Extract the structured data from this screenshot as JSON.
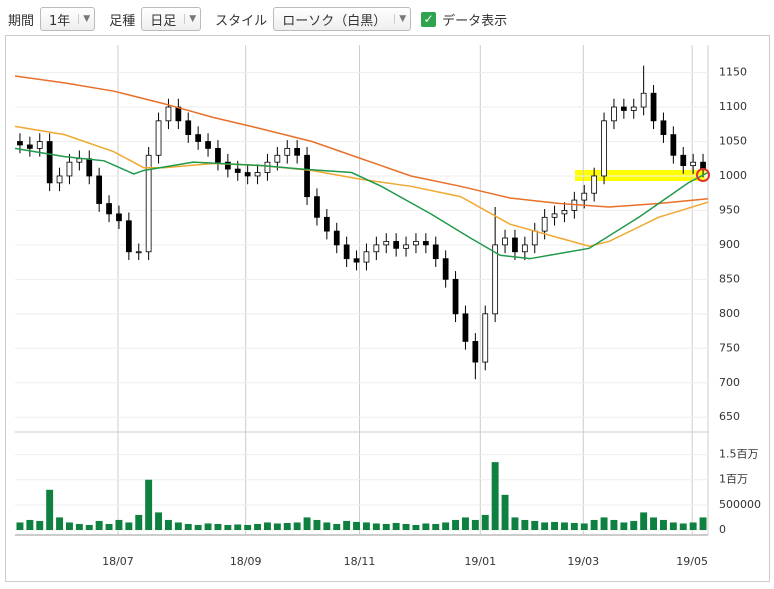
{
  "toolbar": {
    "period_label": "期間",
    "period_value": "1年",
    "bar_label": "足種",
    "bar_value": "日足",
    "style_label": "スタイル",
    "style_value": "ローソク（白黒）",
    "checkbox_label": "データ表示",
    "checkbox_checked": true
  },
  "chart_data": {
    "type": "candlestick",
    "up_color": "#ffffff",
    "down_color": "#000000",
    "xlim": [
      0,
      70
    ],
    "xticks": [
      {
        "value": 10.4,
        "label": "18/07"
      },
      {
        "value": 23.3,
        "label": "18/09"
      },
      {
        "value": 34.8,
        "label": "18/11"
      },
      {
        "value": 47,
        "label": "19/01"
      },
      {
        "value": 57.4,
        "label": "19/03"
      },
      {
        "value": 68.4,
        "label": "19/05"
      }
    ],
    "ylim": [
      630,
      1190
    ],
    "yticks": [
      650,
      700,
      750,
      800,
      850,
      900,
      950,
      1000,
      1050,
      1100,
      1150
    ],
    "grid": true,
    "open": [
      1050,
      1045,
      1040,
      1050,
      990,
      1000,
      1020,
      1025,
      1000,
      960,
      945,
      935,
      890,
      890,
      1030,
      1080,
      1100,
      1080,
      1060,
      1050,
      1040,
      1020,
      1010,
      1005,
      1000,
      1005,
      1020,
      1030,
      1040,
      1030,
      970,
      940,
      920,
      900,
      880,
      875,
      890,
      900,
      905,
      895,
      900,
      905,
      900,
      880,
      850,
      800,
      760,
      730,
      800,
      900,
      910,
      890,
      900,
      920,
      940,
      945,
      950,
      965,
      975,
      1000,
      1080,
      1100,
      1095,
      1100,
      1120,
      1080,
      1060,
      1030,
      1015,
      1020
    ],
    "high": [
      1062,
      1057,
      1062,
      1062,
      1012,
      1032,
      1037,
      1037,
      1012,
      972,
      957,
      947,
      902,
      1042,
      1092,
      1112,
      1112,
      1092,
      1072,
      1062,
      1052,
      1032,
      1022,
      1017,
      1017,
      1032,
      1042,
      1052,
      1052,
      1042,
      982,
      952,
      932,
      912,
      892,
      902,
      912,
      917,
      917,
      912,
      917,
      917,
      912,
      892,
      862,
      812,
      772,
      812,
      955,
      922,
      922,
      912,
      932,
      952,
      957,
      962,
      977,
      987,
      1012,
      1092,
      1112,
      1112,
      1112,
      1160,
      1132,
      1092,
      1072,
      1042,
      1032,
      1032
    ],
    "low": [
      1033,
      1028,
      1028,
      978,
      978,
      988,
      1008,
      988,
      948,
      933,
      923,
      878,
      878,
      878,
      1018,
      1068,
      1068,
      1048,
      1038,
      1028,
      1008,
      998,
      993,
      988,
      988,
      993,
      1008,
      1018,
      1018,
      958,
      928,
      908,
      888,
      868,
      863,
      863,
      878,
      888,
      883,
      883,
      888,
      888,
      868,
      838,
      788,
      748,
      705,
      718,
      788,
      888,
      878,
      878,
      888,
      908,
      928,
      933,
      938,
      953,
      963,
      988,
      1068,
      1083,
      1083,
      1088,
      1068,
      1048,
      1018,
      1003,
      1003,
      998
    ],
    "close": [
      1045,
      1040,
      1050,
      990,
      1000,
      1020,
      1025,
      1000,
      960,
      945,
      935,
      890,
      890,
      1030,
      1080,
      1100,
      1080,
      1060,
      1050,
      1040,
      1020,
      1010,
      1005,
      1000,
      1005,
      1020,
      1030,
      1040,
      1030,
      970,
      940,
      920,
      900,
      880,
      875,
      890,
      900,
      905,
      895,
      900,
      905,
      900,
      880,
      850,
      800,
      760,
      730,
      800,
      900,
      910,
      890,
      900,
      920,
      940,
      945,
      950,
      965,
      975,
      1000,
      1080,
      1100,
      1095,
      1100,
      1120,
      1080,
      1060,
      1030,
      1015,
      1020,
      1010
    ],
    "lines": [
      {
        "color": "#e8702a",
        "x": [
          0,
          5,
          10,
          15,
          20,
          25,
          30,
          35,
          40,
          45,
          50,
          55,
          60,
          65,
          70
        ],
        "values": [
          1145,
          1135,
          1123,
          1105,
          1085,
          1068,
          1050,
          1025,
          1000,
          985,
          968,
          960,
          955,
          960,
          967
        ]
      },
      {
        "color": "#f0a830",
        "x": [
          0,
          5,
          10,
          13,
          15,
          20,
          25,
          30,
          35,
          40,
          45,
          50,
          55,
          58,
          60,
          65,
          70
        ],
        "values": [
          1072,
          1060,
          1035,
          1012,
          1012,
          1018,
          1015,
          1008,
          995,
          985,
          970,
          930,
          910,
          898,
          905,
          940,
          962
        ]
      },
      {
        "color": "#1f9a4a",
        "x": [
          0,
          5,
          9,
          12,
          13,
          18,
          25,
          29,
          34,
          37,
          42,
          46,
          49,
          52,
          58,
          63,
          68,
          70
        ],
        "values": [
          1040,
          1028,
          1022,
          1003,
          1008,
          1020,
          1015,
          1010,
          1005,
          985,
          945,
          910,
          885,
          880,
          895,
          940,
          990,
          1005
        ]
      }
    ],
    "volume": {
      "color": "#0e8040",
      "ylim": [
        0,
        1850000
      ],
      "yticks": [
        0,
        500000,
        {
          "value": 1000000,
          "label": "1百万"
        },
        {
          "value": 1500000,
          "label": "1.5百万"
        }
      ],
      "values": [
        150000,
        200000,
        180000,
        800000,
        250000,
        150000,
        120000,
        100000,
        180000,
        120000,
        200000,
        150000,
        300000,
        1000000,
        350000,
        200000,
        150000,
        120000,
        100000,
        130000,
        120000,
        100000,
        110000,
        100000,
        120000,
        150000,
        130000,
        140000,
        150000,
        250000,
        200000,
        150000,
        120000,
        180000,
        160000,
        150000,
        130000,
        120000,
        140000,
        120000,
        100000,
        130000,
        120000,
        150000,
        200000,
        250000,
        200000,
        300000,
        1350000,
        700000,
        250000,
        200000,
        180000,
        150000,
        160000,
        150000,
        140000,
        130000,
        200000,
        250000,
        200000,
        150000,
        180000,
        350000,
        250000,
        200000,
        150000,
        130000,
        150000,
        250000
      ]
    }
  }
}
